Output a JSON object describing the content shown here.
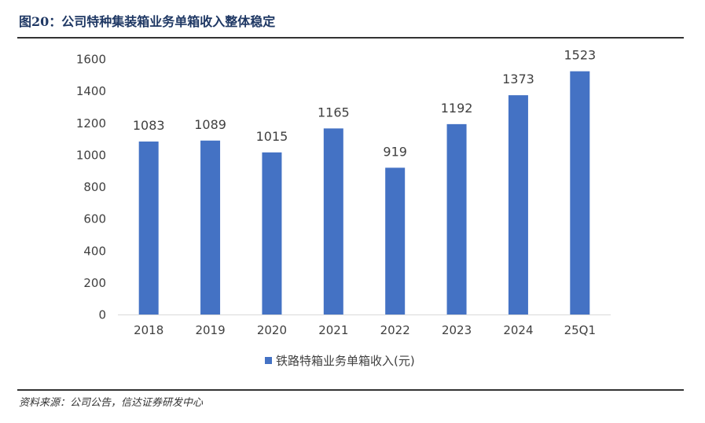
{
  "figure": {
    "title": "图20：公司特种集装箱业务单箱收入整体稳定",
    "source": "资料来源：公司公告，信达证券研发中心"
  },
  "colors": {
    "bar": "#4472c4",
    "title": "#1f3864",
    "text": "#404040",
    "axis": "#d9d9d9"
  },
  "chart_data": {
    "type": "bar",
    "title": "",
    "xlabel": "",
    "ylabel": "",
    "categories": [
      "2018",
      "2019",
      "2020",
      "2021",
      "2022",
      "2023",
      "2024",
      "25Q1"
    ],
    "series": [
      {
        "name": "铁路特箱业务单箱收入(元)",
        "values": [
          1083,
          1089,
          1015,
          1165,
          919,
          1192,
          1373,
          1523
        ]
      }
    ],
    "ylim": [
      0,
      1600
    ],
    "yticks": [
      0,
      200,
      400,
      600,
      800,
      1000,
      1200,
      1400,
      1600
    ],
    "grid": false,
    "data_labels": true,
    "legend_position": "bottom"
  }
}
